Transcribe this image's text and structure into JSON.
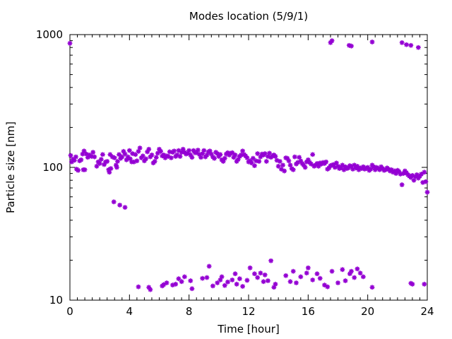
{
  "chart_data": {
    "type": "scatter",
    "title": "Modes location (5/9/1)",
    "xlabel": "Time [hour]",
    "ylabel": "Particle size [nm]",
    "xlim": [
      0,
      24
    ],
    "ylim": [
      10,
      1000
    ],
    "yscale": "log",
    "grid": false,
    "legend": "none",
    "marker_color": "#9400d3",
    "x_ticks": [
      0,
      4,
      8,
      12,
      16,
      20,
      24
    ],
    "y_ticks": [
      10,
      100,
      1000
    ],
    "series": [
      {
        "points": [
          [
            0.0,
            860
          ],
          [
            0.05,
            123
          ],
          [
            0.12,
            110
          ],
          [
            0.2,
            115
          ],
          [
            0.3,
            113
          ],
          [
            0.4,
            120
          ],
          [
            0.45,
            97
          ],
          [
            0.55,
            95
          ],
          [
            0.65,
            112
          ],
          [
            0.75,
            114
          ],
          [
            0.85,
            126
          ],
          [
            0.9,
            96
          ],
          [
            0.95,
            133
          ],
          [
            1.0,
            96
          ],
          [
            1.1,
            126
          ],
          [
            1.2,
            119
          ],
          [
            1.3,
            124
          ],
          [
            1.45,
            121
          ],
          [
            1.55,
            130
          ],
          [
            1.65,
            120
          ],
          [
            1.8,
            102
          ],
          [
            1.9,
            110
          ],
          [
            2.0,
            107
          ],
          [
            2.1,
            115
          ],
          [
            2.2,
            125
          ],
          [
            2.3,
            105
          ],
          [
            2.4,
            110
          ],
          [
            2.5,
            111
          ],
          [
            2.6,
            96
          ],
          [
            2.65,
            92
          ],
          [
            2.7,
            125
          ],
          [
            2.75,
            98
          ],
          [
            2.85,
            120
          ],
          [
            3.0,
            118
          ],
          [
            3.1,
            104
          ],
          [
            3.15,
            100
          ],
          [
            3.2,
            111
          ],
          [
            3.3,
            125
          ],
          [
            3.4,
            117
          ],
          [
            3.5,
            120
          ],
          [
            3.6,
            132
          ],
          [
            3.7,
            126
          ],
          [
            3.8,
            114
          ],
          [
            3.9,
            120
          ],
          [
            4.0,
            134
          ],
          [
            4.05,
            116
          ],
          [
            4.15,
            110
          ],
          [
            4.2,
            127
          ],
          [
            4.3,
            110
          ],
          [
            4.4,
            125
          ],
          [
            4.5,
            112
          ],
          [
            4.6,
            132
          ],
          [
            4.7,
            140
          ],
          [
            4.8,
            118
          ],
          [
            4.9,
            122
          ],
          [
            5.0,
            112
          ],
          [
            5.1,
            116
          ],
          [
            5.2,
            131
          ],
          [
            5.3,
            137
          ],
          [
            5.4,
            120
          ],
          [
            5.5,
            124
          ],
          [
            5.6,
            108
          ],
          [
            5.7,
            111
          ],
          [
            5.8,
            119
          ],
          [
            5.9,
            128
          ],
          [
            6.0,
            137
          ],
          [
            6.1,
            132
          ],
          [
            6.2,
            122
          ],
          [
            6.3,
            124
          ],
          [
            6.4,
            118
          ],
          [
            6.5,
            122
          ],
          [
            6.6,
            121
          ],
          [
            6.7,
            131
          ],
          [
            6.8,
            118
          ],
          [
            6.9,
            130
          ],
          [
            7.0,
            133
          ],
          [
            7.1,
            121
          ],
          [
            7.2,
            124
          ],
          [
            7.3,
            134
          ],
          [
            7.4,
            121
          ],
          [
            7.5,
            130
          ],
          [
            7.6,
            137
          ],
          [
            7.7,
            130
          ],
          [
            7.8,
            126
          ],
          [
            7.9,
            128
          ],
          [
            8.0,
            134
          ],
          [
            8.1,
            124
          ],
          [
            8.2,
            119
          ],
          [
            8.3,
            134
          ],
          [
            8.4,
            129
          ],
          [
            8.5,
            129
          ],
          [
            8.6,
            135
          ],
          [
            8.7,
            125
          ],
          [
            8.8,
            119
          ],
          [
            8.9,
            127
          ],
          [
            9.0,
            134
          ],
          [
            9.1,
            120
          ],
          [
            9.2,
            124
          ],
          [
            9.3,
            131
          ],
          [
            9.4,
            133
          ],
          [
            9.5,
            126
          ],
          [
            9.6,
            120
          ],
          [
            9.7,
            117
          ],
          [
            9.8,
            130
          ],
          [
            9.9,
            127
          ],
          [
            10.0,
            121
          ],
          [
            10.1,
            125
          ],
          [
            10.2,
            114
          ],
          [
            10.3,
            111
          ],
          [
            10.4,
            117
          ],
          [
            10.5,
            126
          ],
          [
            10.6,
            129
          ],
          [
            10.7,
            124
          ],
          [
            10.8,
            128
          ],
          [
            10.9,
            129
          ],
          [
            11.0,
            119
          ],
          [
            11.1,
            124
          ],
          [
            11.2,
            111
          ],
          [
            11.3,
            115
          ],
          [
            11.4,
            121
          ],
          [
            11.5,
            124
          ],
          [
            11.6,
            133
          ],
          [
            11.7,
            125
          ],
          [
            11.8,
            122
          ],
          [
            11.9,
            118
          ],
          [
            12.0,
            110
          ],
          [
            12.1,
            112
          ],
          [
            12.2,
            108
          ],
          [
            12.3,
            117
          ],
          [
            12.4,
            103
          ],
          [
            12.5,
            112
          ],
          [
            12.6,
            127
          ],
          [
            12.7,
            111
          ],
          [
            12.8,
            120
          ],
          [
            12.9,
            126
          ],
          [
            13.0,
            124
          ],
          [
            13.1,
            127
          ],
          [
            13.2,
            111
          ],
          [
            13.3,
            121
          ],
          [
            13.4,
            128
          ],
          [
            13.5,
            119
          ],
          [
            13.6,
            122
          ],
          [
            13.7,
            124
          ],
          [
            13.8,
            121
          ],
          [
            13.9,
            113
          ],
          [
            14.0,
            102
          ],
          [
            14.1,
            111
          ],
          [
            14.2,
            97
          ],
          [
            14.3,
            104
          ],
          [
            14.4,
            94
          ],
          [
            14.5,
            118
          ],
          [
            14.6,
            117
          ],
          [
            14.7,
            112
          ],
          [
            14.8,
            104
          ],
          [
            14.9,
            98
          ],
          [
            15.0,
            96
          ],
          [
            15.1,
            120
          ],
          [
            15.2,
            106
          ],
          [
            15.3,
            109
          ],
          [
            15.4,
            119
          ],
          [
            15.5,
            112
          ],
          [
            15.6,
            107
          ],
          [
            15.7,
            104
          ],
          [
            15.8,
            100
          ],
          [
            15.9,
            110
          ],
          [
            16.0,
            114
          ],
          [
            16.1,
            109
          ],
          [
            16.2,
            106
          ],
          [
            16.3,
            125
          ],
          [
            16.4,
            102
          ],
          [
            16.5,
            104
          ],
          [
            16.6,
            107
          ],
          [
            16.7,
            102
          ],
          [
            16.8,
            108
          ],
          [
            16.9,
            106
          ],
          [
            17.0,
            109
          ],
          [
            17.1,
            107
          ],
          [
            17.2,
            110
          ],
          [
            17.3,
            97
          ],
          [
            17.4,
            99
          ],
          [
            17.5,
            103
          ],
          [
            17.6,
            104
          ],
          [
            17.7,
            105
          ],
          [
            17.8,
            100
          ],
          [
            17.9,
            108
          ],
          [
            18.0,
            102
          ],
          [
            18.1,
            98
          ],
          [
            18.2,
            100
          ],
          [
            18.3,
            104
          ],
          [
            18.4,
            96
          ],
          [
            18.5,
            101
          ],
          [
            18.6,
            98
          ],
          [
            18.7,
            99
          ],
          [
            18.8,
            103
          ],
          [
            18.9,
            102
          ],
          [
            19.0,
            97
          ],
          [
            19.1,
            104
          ],
          [
            19.2,
            99
          ],
          [
            19.3,
            102
          ],
          [
            19.4,
            96
          ],
          [
            19.5,
            99
          ],
          [
            19.6,
            98
          ],
          [
            19.7,
            101
          ],
          [
            19.8,
            97
          ],
          [
            19.9,
            99
          ],
          [
            20.0,
            100
          ],
          [
            20.1,
            95
          ],
          [
            20.2,
            97
          ],
          [
            20.3,
            104
          ],
          [
            20.4,
            101
          ],
          [
            20.5,
            96
          ],
          [
            20.6,
            100
          ],
          [
            20.7,
            98
          ],
          [
            20.8,
            96
          ],
          [
            20.9,
            101
          ],
          [
            21.0,
            98
          ],
          [
            21.1,
            95
          ],
          [
            21.2,
            96
          ],
          [
            21.3,
            99
          ],
          [
            21.4,
            97
          ],
          [
            21.5,
            94
          ],
          [
            21.6,
            96
          ],
          [
            21.7,
            92
          ],
          [
            21.8,
            94
          ],
          [
            21.9,
            90
          ],
          [
            22.0,
            95
          ],
          [
            22.1,
            93
          ],
          [
            22.2,
            89
          ],
          [
            22.3,
            74
          ],
          [
            22.4,
            90
          ],
          [
            22.5,
            94
          ],
          [
            22.6,
            91
          ],
          [
            22.7,
            88
          ],
          [
            22.8,
            86
          ],
          [
            22.9,
            84
          ],
          [
            23.0,
            87
          ],
          [
            23.1,
            80
          ],
          [
            23.2,
            85
          ],
          [
            23.3,
            88
          ],
          [
            23.4,
            83
          ],
          [
            23.5,
            86
          ],
          [
            23.6,
            89
          ],
          [
            23.7,
            77
          ],
          [
            23.8,
            92
          ],
          [
            23.9,
            78
          ],
          [
            24.0,
            65
          ],
          [
            2.95,
            55
          ],
          [
            3.35,
            52
          ],
          [
            3.7,
            50
          ],
          [
            4.6,
            12.6
          ],
          [
            5.3,
            12.5
          ],
          [
            5.4,
            12.0
          ],
          [
            6.2,
            12.8
          ],
          [
            6.3,
            13.1
          ],
          [
            6.5,
            13.5
          ],
          [
            6.9,
            13.0
          ],
          [
            7.1,
            13.2
          ],
          [
            7.3,
            14.5
          ],
          [
            7.5,
            13.8
          ],
          [
            7.7,
            15.0
          ],
          [
            8.1,
            14.0
          ],
          [
            8.2,
            12.2
          ],
          [
            8.9,
            14.6
          ],
          [
            9.2,
            14.8
          ],
          [
            9.35,
            18.0
          ],
          [
            9.6,
            12.8
          ],
          [
            9.9,
            13.5
          ],
          [
            10.1,
            14.2
          ],
          [
            10.2,
            15.0
          ],
          [
            10.4,
            12.9
          ],
          [
            10.6,
            13.7
          ],
          [
            10.9,
            14.2
          ],
          [
            11.1,
            15.8
          ],
          [
            11.2,
            13.2
          ],
          [
            11.4,
            14.5
          ],
          [
            11.6,
            12.7
          ],
          [
            11.9,
            14.1
          ],
          [
            12.1,
            17.5
          ],
          [
            12.4,
            15.8
          ],
          [
            12.6,
            14.8
          ],
          [
            12.8,
            16.0
          ],
          [
            13.0,
            13.8
          ],
          [
            13.1,
            15.5
          ],
          [
            13.3,
            14.0
          ],
          [
            13.5,
            19.8
          ],
          [
            13.7,
            12.5
          ],
          [
            13.8,
            13.2
          ],
          [
            14.5,
            15.3
          ],
          [
            14.8,
            13.8
          ],
          [
            15.0,
            16.5
          ],
          [
            15.2,
            13.5
          ],
          [
            15.5,
            15.0
          ],
          [
            15.9,
            16.0
          ],
          [
            16.0,
            17.5
          ],
          [
            16.3,
            14.2
          ],
          [
            16.6,
            15.8
          ],
          [
            16.8,
            14.6
          ],
          [
            17.1,
            13.0
          ],
          [
            17.3,
            12.6
          ],
          [
            17.6,
            16.5
          ],
          [
            18.0,
            13.5
          ],
          [
            18.3,
            17.0
          ],
          [
            18.5,
            14.0
          ],
          [
            18.8,
            15.8
          ],
          [
            18.9,
            16.5
          ],
          [
            19.1,
            14.8
          ],
          [
            19.3,
            17.2
          ],
          [
            19.5,
            16.0
          ],
          [
            19.7,
            15.0
          ],
          [
            20.3,
            12.5
          ],
          [
            22.9,
            13.4
          ],
          [
            23.0,
            13.2
          ],
          [
            23.8,
            13.2
          ],
          [
            17.5,
            870
          ],
          [
            17.6,
            900
          ],
          [
            18.75,
            830
          ],
          [
            18.9,
            820
          ],
          [
            20.3,
            880
          ],
          [
            22.3,
            870
          ],
          [
            22.6,
            840
          ],
          [
            22.9,
            830
          ],
          [
            23.4,
            800
          ]
        ]
      }
    ]
  }
}
